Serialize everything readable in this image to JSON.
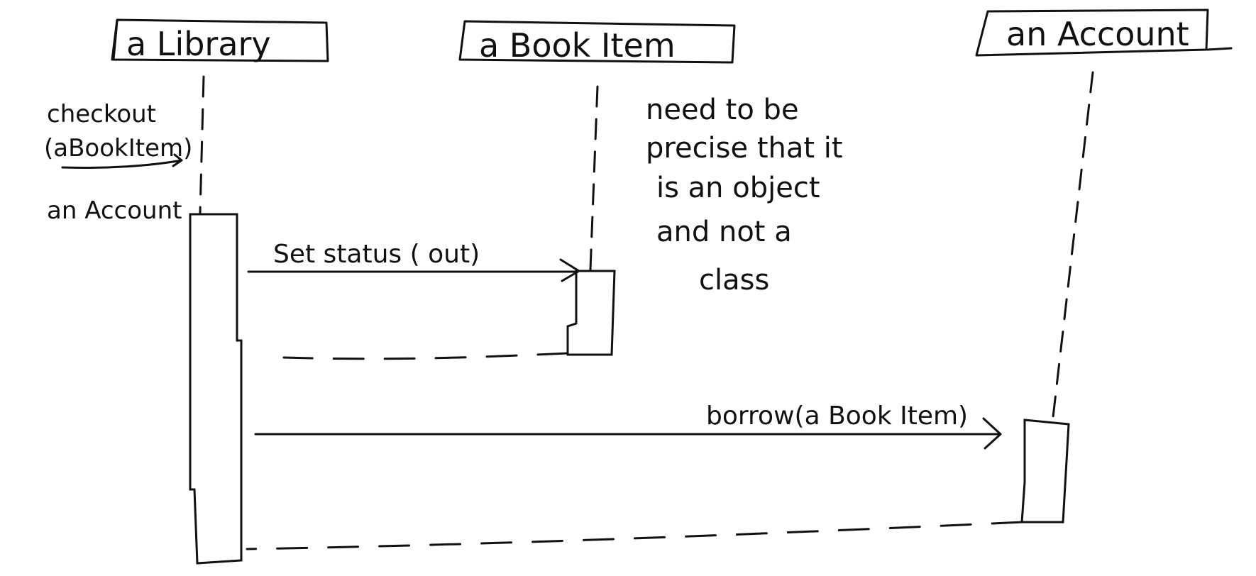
{
  "diagram": {
    "type": "sequence",
    "participants": [
      {
        "label": "a Library"
      },
      {
        "label": "a Book Item"
      },
      {
        "label": "an Account"
      }
    ],
    "incoming_message": {
      "line1": "checkout",
      "line2": "(aBookItem)"
    },
    "caller_label": "an Account",
    "messages": [
      {
        "label": "Set status ( out)"
      },
      {
        "label": "borrow(a Book Item)"
      }
    ],
    "note": {
      "color": "#b01c1c",
      "lines": [
        "need to be",
        "precise that it",
        "is an object",
        "and not a",
        "class"
      ]
    }
  }
}
